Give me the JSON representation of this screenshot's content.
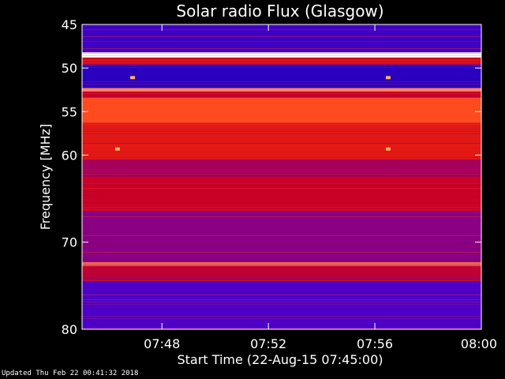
{
  "chart_data": {
    "type": "heatmap",
    "title": "Solar radio Flux (Glasgow)",
    "xlabel": "Start Time (22-Aug-15 07:45:00)",
    "ylabel": "Frequency [MHz]",
    "x_range_minutes": [
      0,
      15
    ],
    "x_ticks": [
      {
        "minute": 3,
        "label": "07:48"
      },
      {
        "minute": 7,
        "label": "07:52"
      },
      {
        "minute": 11,
        "label": "07:56"
      },
      {
        "minute": 15,
        "label": "08:00"
      }
    ],
    "y_range_mhz": [
      45,
      80
    ],
    "y_scale": "linear, decreasing downward (45 at top, 80 at bottom)",
    "y_ticks": [
      45,
      50,
      55,
      60,
      70,
      80
    ],
    "colormap": [
      "#0000b4",
      "#5a00c8",
      "#c80028",
      "#ff3200",
      "#ffffff"
    ],
    "bands": [
      {
        "from_mhz": 45.0,
        "to_mhz": 48.2,
        "level": 0.18
      },
      {
        "from_mhz": 48.2,
        "to_mhz": 48.8,
        "level": 1.0
      },
      {
        "from_mhz": 48.8,
        "to_mhz": 49.6,
        "level": 0.55
      },
      {
        "from_mhz": 49.6,
        "to_mhz": 52.3,
        "level": 0.12
      },
      {
        "from_mhz": 52.3,
        "to_mhz": 52.7,
        "level": 0.85
      },
      {
        "from_mhz": 52.7,
        "to_mhz": 53.4,
        "level": 0.5
      },
      {
        "from_mhz": 53.4,
        "to_mhz": 56.3,
        "level": 0.78
      },
      {
        "from_mhz": 56.3,
        "to_mhz": 60.5,
        "level": 0.62
      },
      {
        "from_mhz": 60.5,
        "to_mhz": 62.5,
        "level": 0.42
      },
      {
        "from_mhz": 62.5,
        "to_mhz": 66.5,
        "level": 0.5
      },
      {
        "from_mhz": 66.5,
        "to_mhz": 72.3,
        "level": 0.36
      },
      {
        "from_mhz": 72.3,
        "to_mhz": 72.7,
        "level": 0.82
      },
      {
        "from_mhz": 72.7,
        "to_mhz": 74.5,
        "level": 0.48
      },
      {
        "from_mhz": 74.5,
        "to_mhz": 80.0,
        "level": 0.22
      }
    ],
    "bright_spots": [
      {
        "minute": 1.33,
        "mhz": 59.3
      },
      {
        "minute": 11.5,
        "mhz": 59.3
      },
      {
        "minute": 1.9,
        "mhz": 51.1
      },
      {
        "minute": 11.5,
        "mhz": 51.1
      }
    ]
  },
  "footer": {
    "updated": "Updated Thu Feb 22 00:41:32 2018"
  }
}
